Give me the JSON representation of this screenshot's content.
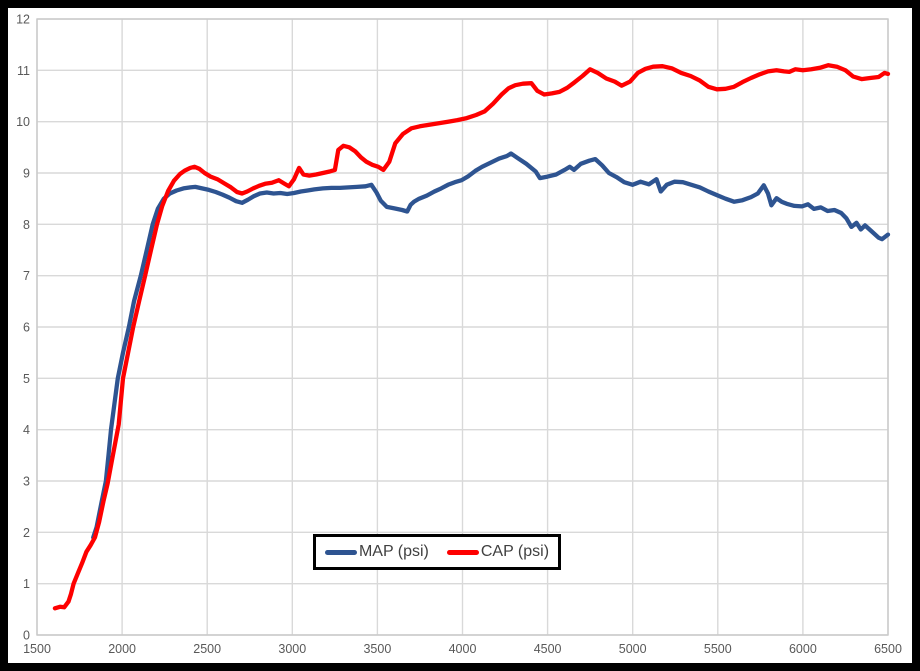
{
  "colors": {
    "background": "#ffffff",
    "frame": "#000000",
    "gridline": "#d9d9d9",
    "plot_border": "#c9c9c9",
    "tick_label": "#595959",
    "legend_text": "#404040",
    "legend_border": "#000000",
    "map_series": "#2e5491",
    "cap_series": "#fe0000"
  },
  "legend": {
    "items": [
      {
        "label": "MAP (psi)",
        "color": "#2e5491"
      },
      {
        "label": "CAP (psi)",
        "color": "#fe0000"
      }
    ]
  },
  "chart_data": {
    "type": "line",
    "title": "",
    "xlabel": "",
    "ylabel": "",
    "xlim": [
      1500,
      6500
    ],
    "ylim": [
      0,
      12
    ],
    "x_ticks": [
      1500,
      2000,
      2500,
      3000,
      3500,
      4000,
      4500,
      5000,
      5500,
      6000,
      6500
    ],
    "y_ticks": [
      0,
      1,
      2,
      3,
      4,
      5,
      6,
      7,
      8,
      9,
      10,
      11,
      12
    ],
    "grid": true,
    "legend_position": "inside-bottom-center",
    "series": [
      {
        "name": "MAP (psi)",
        "color": "#2e5491",
        "points": [
          [
            1830,
            1.9
          ],
          [
            1850,
            2.1
          ],
          [
            1880,
            2.6
          ],
          [
            1905,
            3.0
          ],
          [
            1920,
            3.5
          ],
          [
            1935,
            4.0
          ],
          [
            1955,
            4.5
          ],
          [
            1975,
            5.0
          ],
          [
            2005,
            5.5
          ],
          [
            2040,
            6.0
          ],
          [
            2070,
            6.5
          ],
          [
            2110,
            7.0
          ],
          [
            2145,
            7.5
          ],
          [
            2180,
            8.0
          ],
          [
            2210,
            8.3
          ],
          [
            2245,
            8.5
          ],
          [
            2280,
            8.6
          ],
          [
            2320,
            8.66
          ],
          [
            2360,
            8.7
          ],
          [
            2400,
            8.72
          ],
          [
            2430,
            8.73
          ],
          [
            2470,
            8.7
          ],
          [
            2510,
            8.67
          ],
          [
            2550,
            8.63
          ],
          [
            2590,
            8.58
          ],
          [
            2630,
            8.52
          ],
          [
            2670,
            8.45
          ],
          [
            2705,
            8.42
          ],
          [
            2740,
            8.48
          ],
          [
            2775,
            8.55
          ],
          [
            2810,
            8.6
          ],
          [
            2850,
            8.62
          ],
          [
            2890,
            8.6
          ],
          [
            2930,
            8.61
          ],
          [
            2970,
            8.59
          ],
          [
            3010,
            8.61
          ],
          [
            3050,
            8.64
          ],
          [
            3090,
            8.66
          ],
          [
            3130,
            8.68
          ],
          [
            3180,
            8.7
          ],
          [
            3230,
            8.71
          ],
          [
            3280,
            8.71
          ],
          [
            3330,
            8.72
          ],
          [
            3380,
            8.73
          ],
          [
            3430,
            8.74
          ],
          [
            3465,
            8.77
          ],
          [
            3495,
            8.62
          ],
          [
            3520,
            8.46
          ],
          [
            3555,
            8.34
          ],
          [
            3600,
            8.31
          ],
          [
            3645,
            8.28
          ],
          [
            3675,
            8.25
          ],
          [
            3695,
            8.38
          ],
          [
            3715,
            8.44
          ],
          [
            3745,
            8.5
          ],
          [
            3790,
            8.56
          ],
          [
            3835,
            8.64
          ],
          [
            3875,
            8.7
          ],
          [
            3915,
            8.77
          ],
          [
            3955,
            8.82
          ],
          [
            3995,
            8.86
          ],
          [
            4035,
            8.94
          ],
          [
            4075,
            9.04
          ],
          [
            4115,
            9.12
          ],
          [
            4165,
            9.2
          ],
          [
            4215,
            9.28
          ],
          [
            4260,
            9.33
          ],
          [
            4285,
            9.38
          ],
          [
            4320,
            9.3
          ],
          [
            4375,
            9.18
          ],
          [
            4430,
            9.03
          ],
          [
            4455,
            8.9
          ],
          [
            4500,
            8.93
          ],
          [
            4550,
            8.97
          ],
          [
            4600,
            9.06
          ],
          [
            4630,
            9.12
          ],
          [
            4655,
            9.06
          ],
          [
            4695,
            9.18
          ],
          [
            4745,
            9.24
          ],
          [
            4780,
            9.27
          ],
          [
            4820,
            9.15
          ],
          [
            4860,
            9.0
          ],
          [
            4905,
            8.92
          ],
          [
            4950,
            8.82
          ],
          [
            5000,
            8.77
          ],
          [
            5045,
            8.83
          ],
          [
            5095,
            8.78
          ],
          [
            5140,
            8.88
          ],
          [
            5165,
            8.64
          ],
          [
            5200,
            8.77
          ],
          [
            5245,
            8.83
          ],
          [
            5295,
            8.82
          ],
          [
            5345,
            8.77
          ],
          [
            5395,
            8.72
          ],
          [
            5445,
            8.64
          ],
          [
            5495,
            8.57
          ],
          [
            5545,
            8.5
          ],
          [
            5595,
            8.44
          ],
          [
            5645,
            8.47
          ],
          [
            5695,
            8.53
          ],
          [
            5735,
            8.6
          ],
          [
            5770,
            8.76
          ],
          [
            5795,
            8.6
          ],
          [
            5815,
            8.37
          ],
          [
            5845,
            8.51
          ],
          [
            5875,
            8.44
          ],
          [
            5905,
            8.4
          ],
          [
            5950,
            8.36
          ],
          [
            5995,
            8.35
          ],
          [
            6030,
            8.39
          ],
          [
            6065,
            8.3
          ],
          [
            6105,
            8.33
          ],
          [
            6145,
            8.26
          ],
          [
            6185,
            8.28
          ],
          [
            6225,
            8.22
          ],
          [
            6255,
            8.12
          ],
          [
            6285,
            7.95
          ],
          [
            6315,
            8.03
          ],
          [
            6340,
            7.9
          ],
          [
            6365,
            7.98
          ],
          [
            6405,
            7.86
          ],
          [
            6445,
            7.74
          ],
          [
            6465,
            7.71
          ],
          [
            6500,
            7.8
          ]
        ]
      },
      {
        "name": "CAP (psi)",
        "color": "#fe0000",
        "points": [
          [
            1605,
            0.52
          ],
          [
            1635,
            0.55
          ],
          [
            1660,
            0.54
          ],
          [
            1685,
            0.65
          ],
          [
            1700,
            0.8
          ],
          [
            1715,
            1.0
          ],
          [
            1740,
            1.2
          ],
          [
            1765,
            1.4
          ],
          [
            1790,
            1.62
          ],
          [
            1815,
            1.75
          ],
          [
            1840,
            1.9
          ],
          [
            1865,
            2.2
          ],
          [
            1890,
            2.6
          ],
          [
            1915,
            2.95
          ],
          [
            1940,
            3.4
          ],
          [
            1960,
            3.75
          ],
          [
            1980,
            4.1
          ],
          [
            2005,
            5.0
          ],
          [
            2035,
            5.5
          ],
          [
            2065,
            6.0
          ],
          [
            2100,
            6.5
          ],
          [
            2135,
            7.0
          ],
          [
            2170,
            7.5
          ],
          [
            2205,
            8.0
          ],
          [
            2235,
            8.35
          ],
          [
            2270,
            8.65
          ],
          [
            2305,
            8.85
          ],
          [
            2340,
            8.98
          ],
          [
            2370,
            9.05
          ],
          [
            2400,
            9.1
          ],
          [
            2425,
            9.12
          ],
          [
            2455,
            9.08
          ],
          [
            2485,
            9.0
          ],
          [
            2520,
            8.93
          ],
          [
            2560,
            8.88
          ],
          [
            2600,
            8.8
          ],
          [
            2640,
            8.72
          ],
          [
            2675,
            8.63
          ],
          [
            2705,
            8.6
          ],
          [
            2735,
            8.64
          ],
          [
            2770,
            8.7
          ],
          [
            2805,
            8.75
          ],
          [
            2840,
            8.79
          ],
          [
            2880,
            8.81
          ],
          [
            2920,
            8.86
          ],
          [
            2950,
            8.8
          ],
          [
            2980,
            8.74
          ],
          [
            3010,
            8.88
          ],
          [
            3040,
            9.1
          ],
          [
            3065,
            8.97
          ],
          [
            3100,
            8.95
          ],
          [
            3140,
            8.97
          ],
          [
            3180,
            9.0
          ],
          [
            3220,
            9.03
          ],
          [
            3250,
            9.06
          ],
          [
            3270,
            9.45
          ],
          [
            3300,
            9.53
          ],
          [
            3335,
            9.5
          ],
          [
            3370,
            9.42
          ],
          [
            3405,
            9.3
          ],
          [
            3435,
            9.22
          ],
          [
            3470,
            9.16
          ],
          [
            3505,
            9.12
          ],
          [
            3535,
            9.06
          ],
          [
            3570,
            9.22
          ],
          [
            3605,
            9.58
          ],
          [
            3650,
            9.76
          ],
          [
            3700,
            9.87
          ],
          [
            3750,
            9.91
          ],
          [
            3805,
            9.94
          ],
          [
            3860,
            9.97
          ],
          [
            3915,
            10.0
          ],
          [
            3970,
            10.03
          ],
          [
            4025,
            10.07
          ],
          [
            4080,
            10.13
          ],
          [
            4130,
            10.2
          ],
          [
            4180,
            10.35
          ],
          [
            4230,
            10.53
          ],
          [
            4270,
            10.65
          ],
          [
            4310,
            10.71
          ],
          [
            4355,
            10.74
          ],
          [
            4405,
            10.75
          ],
          [
            4440,
            10.6
          ],
          [
            4480,
            10.53
          ],
          [
            4525,
            10.55
          ],
          [
            4570,
            10.58
          ],
          [
            4615,
            10.66
          ],
          [
            4660,
            10.77
          ],
          [
            4705,
            10.89
          ],
          [
            4750,
            11.02
          ],
          [
            4795,
            10.95
          ],
          [
            4845,
            10.84
          ],
          [
            4895,
            10.78
          ],
          [
            4935,
            10.7
          ],
          [
            4985,
            10.78
          ],
          [
            5030,
            10.95
          ],
          [
            5075,
            11.03
          ],
          [
            5120,
            11.07
          ],
          [
            5175,
            11.08
          ],
          [
            5230,
            11.04
          ],
          [
            5285,
            10.95
          ],
          [
            5340,
            10.89
          ],
          [
            5395,
            10.8
          ],
          [
            5445,
            10.68
          ],
          [
            5495,
            10.63
          ],
          [
            5545,
            10.64
          ],
          [
            5595,
            10.68
          ],
          [
            5645,
            10.77
          ],
          [
            5695,
            10.85
          ],
          [
            5745,
            10.92
          ],
          [
            5795,
            10.98
          ],
          [
            5845,
            11.0
          ],
          [
            5890,
            10.98
          ],
          [
            5920,
            10.97
          ],
          [
            5955,
            11.02
          ],
          [
            6000,
            11.0
          ],
          [
            6050,
            11.02
          ],
          [
            6100,
            11.05
          ],
          [
            6150,
            11.1
          ],
          [
            6200,
            11.07
          ],
          [
            6250,
            11.0
          ],
          [
            6295,
            10.88
          ],
          [
            6345,
            10.83
          ],
          [
            6395,
            10.85
          ],
          [
            6445,
            10.87
          ],
          [
            6480,
            10.95
          ],
          [
            6500,
            10.93
          ]
        ]
      }
    ]
  }
}
